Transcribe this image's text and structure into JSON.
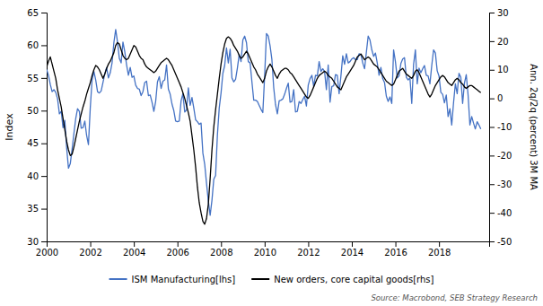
{
  "chart_data": {
    "type": "line",
    "ylabel": "Index",
    "y2label": "Ann. 2q/2q (percent) 3M MA",
    "annotations": [
      "Source: Macrobond, SEB Strategy Research"
    ],
    "xlim": [
      2000,
      2020.3
    ],
    "xticks": [
      2000,
      2002,
      2004,
      2006,
      2008,
      2010,
      2012,
      2014,
      2016,
      2018
    ],
    "ylim": [
      30,
      65
    ],
    "yticks": [
      30,
      35,
      40,
      45,
      50,
      55,
      60,
      65
    ],
    "y2lim": [
      -50,
      30
    ],
    "y2ticks": [
      -50,
      -40,
      -30,
      -20,
      -10,
      0,
      10,
      20,
      30
    ],
    "grid": false,
    "legend": "bottom",
    "x": [
      2000,
      2000.0833333333333,
      2000.1666666666667,
      2000.25,
      2000.3333333333333,
      2000.4166666666667,
      2000.5,
      2000.5833333333333,
      2000.6666666666667,
      2000.75,
      2000.8333333333333,
      2000.9166666666667,
      2001,
      2001.0833333333333,
      2001.1666666666667,
      2001.25,
      2001.3333333333333,
      2001.4166666666667,
      2001.5,
      2001.5833333333333,
      2001.6666666666667,
      2001.75,
      2001.8333333333333,
      2001.9166666666667,
      2002,
      2002.0833333333333,
      2002.1666666666667,
      2002.25,
      2002.3333333333333,
      2002.4166666666667,
      2002.5,
      2002.5833333333333,
      2002.6666666666667,
      2002.75,
      2002.8333333333333,
      2002.9166666666667,
      2003,
      2003.0833333333333,
      2003.1666666666667,
      2003.25,
      2003.3333333333333,
      2003.4166666666667,
      2003.5,
      2003.5833333333333,
      2003.6666666666667,
      2003.75,
      2003.8333333333333,
      2003.9166666666667,
      2004,
      2004.0833333333333,
      2004.1666666666667,
      2004.25,
      2004.3333333333333,
      2004.4166666666667,
      2004.5,
      2004.5833333333333,
      2004.6666666666667,
      2004.75,
      2004.8333333333333,
      2004.9166666666667,
      2005,
      2005.0833333333333,
      2005.1666666666667,
      2005.25,
      2005.3333333333333,
      2005.4166666666667,
      2005.5,
      2005.5833333333333,
      2005.6666666666667,
      2005.75,
      2005.8333333333333,
      2005.9166666666667,
      2006,
      2006.0833333333333,
      2006.1666666666667,
      2006.25,
      2006.3333333333333,
      2006.4166666666667,
      2006.5,
      2006.5833333333333,
      2006.6666666666667,
      2006.75,
      2006.8333333333333,
      2006.9166666666667,
      2007,
      2007.0833333333333,
      2007.1666666666667,
      2007.25,
      2007.3333333333333,
      2007.4166666666667,
      2007.5,
      2007.5833333333333,
      2007.6666666666667,
      2007.75,
      2007.8333333333333,
      2007.9166666666667,
      2008,
      2008.0833333333333,
      2008.1666666666667,
      2008.25,
      2008.3333333333333,
      2008.4166666666667,
      2008.5,
      2008.5833333333333,
      2008.6666666666667,
      2008.75,
      2008.8333333333333,
      2008.9166666666667,
      2009,
      2009.0833333333333,
      2009.1666666666667,
      2009.25,
      2009.3333333333333,
      2009.4166666666667,
      2009.5,
      2009.5833333333333,
      2009.6666666666667,
      2009.75,
      2009.8333333333333,
      2009.9166666666667,
      2010,
      2010.0833333333333,
      2010.1666666666667,
      2010.25,
      2010.3333333333333,
      2010.4166666666667,
      2010.5,
      2010.5833333333333,
      2010.6666666666667,
      2010.75,
      2010.8333333333333,
      2010.9166666666667,
      2011,
      2011.0833333333333,
      2011.1666666666667,
      2011.25,
      2011.3333333333333,
      2011.4166666666667,
      2011.5,
      2011.5833333333333,
      2011.6666666666667,
      2011.75,
      2011.8333333333333,
      2011.9166666666667,
      2012,
      2012.0833333333333,
      2012.1666666666667,
      2012.25,
      2012.3333333333333,
      2012.4166666666667,
      2012.5,
      2012.5833333333333,
      2012.6666666666667,
      2012.75,
      2012.8333333333333,
      2012.9166666666667,
      2013,
      2013.0833333333333,
      2013.1666666666667,
      2013.25,
      2013.3333333333333,
      2013.4166666666667,
      2013.5,
      2013.5833333333333,
      2013.6666666666667,
      2013.75,
      2013.8333333333333,
      2013.9166666666667,
      2014,
      2014.0833333333333,
      2014.1666666666667,
      2014.25,
      2014.3333333333333,
      2014.4166666666667,
      2014.5,
      2014.5833333333333,
      2014.6666666666667,
      2014.75,
      2014.8333333333333,
      2014.9166666666667,
      2015,
      2015.0833333333333,
      2015.1666666666667,
      2015.25,
      2015.3333333333333,
      2015.4166666666667,
      2015.5,
      2015.5833333333333,
      2015.6666666666667,
      2015.75,
      2015.8333333333333,
      2015.9166666666667,
      2016,
      2016.0833333333333,
      2016.1666666666667,
      2016.25,
      2016.3333333333333,
      2016.4166666666667,
      2016.5,
      2016.5833333333333,
      2016.6666666666667,
      2016.75,
      2016.8333333333333,
      2016.9166666666667,
      2017,
      2017.0833333333333,
      2017.1666666666667,
      2017.25,
      2017.3333333333333,
      2017.4166666666667,
      2017.5,
      2017.5833333333333,
      2017.6666666666667,
      2017.75,
      2017.8333333333333,
      2017.9166666666667,
      2018,
      2018.0833333333333,
      2018.1666666666667,
      2018.25,
      2018.3333333333333,
      2018.4166666666667,
      2018.5,
      2018.5833333333333,
      2018.6666666666667,
      2018.75,
      2018.8333333333333,
      2018.9166666666667,
      2019,
      2019.0833333333333,
      2019.1666666666667,
      2019.25,
      2019.3333333333333,
      2019.4166666666667,
      2019.5,
      2019.5833333333333,
      2019.6666666666667,
      2019.75,
      2019.8333333333333,
      2019.9166666666667
    ],
    "series": [
      {
        "name": "ISM Manufacturing[lhs]",
        "color": "#4472C4",
        "axis": "y",
        "values": [
          56.3,
          55.4,
          54.0,
          52.9,
          53.2,
          52.8,
          51.8,
          49.5,
          49.9,
          47.4,
          48.5,
          44.3,
          41.2,
          41.9,
          44.1,
          46.5,
          48.8,
          50.3,
          49.9,
          47.3,
          47.4,
          48.4,
          46.2,
          44.8,
          50.4,
          54.7,
          56.0,
          54.7,
          52.9,
          52.7,
          53.0,
          54.3,
          55.6,
          56.6,
          55.0,
          55.8,
          57.3,
          60.4,
          62.4,
          60.5,
          58.0,
          57.3,
          60.5,
          59.0,
          57.0,
          55.4,
          56.6,
          55.1,
          55.3,
          53.9,
          53.4,
          53.3,
          52.3,
          52.9,
          54.3,
          54.5,
          52.3,
          52.4,
          51.3,
          49.9,
          51.4,
          54.4,
          55.2,
          53.4,
          54.5,
          54.7,
          57.0,
          53.3,
          52.5,
          51.0,
          50.0,
          48.4,
          48.3,
          48.4,
          51.5,
          52.6,
          49.8,
          50.1,
          53.5,
          50.8,
          52.0,
          50.4,
          48.6,
          48.3,
          47.9,
          48.1,
          43.5,
          41.8,
          38.9,
          36.2,
          34.0,
          36.3,
          39.5,
          40.1,
          46.3,
          50.4,
          52.7,
          55.7,
          56.9,
          59.6,
          57.3,
          59.4,
          55.0,
          54.4,
          54.8,
          56.5,
          58.6,
          57.5,
          60.8,
          61.4,
          60.4,
          57.5,
          57.3,
          54.4,
          51.6,
          51.6,
          51.4,
          50.8,
          50.2,
          49.7,
          55.3,
          61.8,
          61.4,
          59.9,
          57.8,
          53.5,
          50.9,
          49.5,
          51.5,
          51.6,
          51.8,
          52.5,
          53.4,
          54.2,
          51.3,
          51.4,
          53.2,
          49.8,
          49.9,
          51.4,
          51.1,
          51.7,
          52.2,
          50.7,
          53.9,
          54.9,
          55.4,
          53.7,
          55.4,
          55.3,
          57.5,
          56.0,
          56.4,
          56.0,
          53.2,
          57.0,
          51.3,
          53.7,
          53.8,
          55.5,
          55.4,
          52.6,
          55.3,
          58.4,
          57.1,
          58.7,
          57.3,
          57.5,
          57.9,
          58.1,
          57.8,
          57.8,
          58.7,
          58.6,
          57.3,
          56.4,
          58.9,
          61.4,
          60.8,
          59.3,
          58.3,
          58.8,
          57.3,
          55.4,
          56.6,
          54.9,
          54.3,
          52.2,
          51.4,
          52.1,
          51.1,
          59.3,
          57.5,
          55.0,
          55.3,
          57.2,
          57.9,
          58.1,
          55.1,
          54.7,
          55.0,
          51.1,
          57.1,
          59.3,
          54.1,
          56.5,
          55.8,
          56.4,
          56.9,
          55.4,
          55.3,
          54.1,
          56.9,
          59.3,
          58.8,
          56.1,
          55.3,
          52.8,
          52.5,
          51.2,
          52.4,
          49.1,
          50.3,
          47.8,
          51.2,
          54.1,
          52.6,
          55.7,
          55.1,
          51.1,
          54.2,
          55.5,
          52.4,
          47.8,
          49.1,
          48.1,
          47.2,
          48.3,
          47.8,
          47.2
        ]
      },
      {
        "name": "New orders, core capital goods[rhs]",
        "color": "#000000",
        "axis": "y2",
        "values": [
          11.0,
          13.0,
          14.5,
          12.0,
          9.5,
          7.0,
          3.0,
          0.0,
          -3.0,
          -7.0,
          -11.0,
          -15.0,
          -18.0,
          -20.0,
          -19.5,
          -17.0,
          -14.0,
          -11.0,
          -8.0,
          -5.5,
          -3.0,
          -1.0,
          1.5,
          3.5,
          5.5,
          8.0,
          10.0,
          11.5,
          11.0,
          10.0,
          8.5,
          7.0,
          8.5,
          10.5,
          12.0,
          13.0,
          14.5,
          16.0,
          18.5,
          19.5,
          19.0,
          17.0,
          15.0,
          14.0,
          13.5,
          14.0,
          15.5,
          17.0,
          18.5,
          18.0,
          16.5,
          15.0,
          14.0,
          13.5,
          12.0,
          11.0,
          10.5,
          10.0,
          9.5,
          9.0,
          9.5,
          10.5,
          11.5,
          12.5,
          13.0,
          13.5,
          14.0,
          13.5,
          12.5,
          11.5,
          10.0,
          8.5,
          7.0,
          5.5,
          4.0,
          2.0,
          0.0,
          -2.5,
          -5.0,
          -8.0,
          -13.0,
          -18.0,
          -24.0,
          -31.0,
          -36.5,
          -40.0,
          -43.0,
          -44.0,
          -42.0,
          -37.0,
          -28.0,
          -18.0,
          -10.0,
          -4.0,
          1.5,
          7.0,
          12.0,
          16.0,
          19.0,
          21.0,
          21.5,
          21.0,
          20.0,
          18.5,
          17.5,
          16.5,
          15.0,
          14.0,
          14.5,
          15.5,
          16.5,
          15.5,
          14.0,
          12.5,
          11.0,
          10.0,
          8.5,
          7.5,
          6.5,
          5.5,
          7.0,
          9.5,
          11.0,
          12.0,
          11.0,
          9.5,
          8.0,
          7.0,
          8.5,
          9.5,
          10.0,
          10.5,
          10.5,
          10.0,
          9.0,
          8.5,
          7.5,
          6.5,
          5.5,
          4.5,
          3.5,
          2.5,
          1.5,
          0.5,
          0.0,
          1.0,
          2.5,
          4.0,
          5.5,
          7.0,
          8.0,
          8.5,
          9.0,
          9.5,
          9.0,
          8.0,
          7.5,
          7.0,
          6.0,
          5.0,
          4.0,
          3.5,
          3.0,
          4.5,
          6.0,
          7.5,
          8.5,
          9.5,
          10.5,
          11.5,
          13.0,
          14.5,
          15.0,
          15.5,
          14.5,
          13.5,
          14.0,
          14.5,
          14.0,
          13.0,
          12.0,
          11.5,
          11.0,
          10.0,
          9.0,
          8.0,
          7.0,
          6.0,
          5.5,
          5.0,
          4.5,
          5.0,
          6.5,
          8.0,
          9.5,
          10.0,
          10.5,
          9.5,
          8.5,
          8.0,
          7.5,
          7.0,
          8.0,
          9.5,
          10.0,
          9.0,
          7.5,
          6.0,
          4.5,
          3.0,
          1.5,
          0.5,
          1.5,
          3.0,
          4.5,
          5.5,
          6.5,
          7.5,
          8.0,
          7.5,
          6.5,
          5.5,
          5.0,
          4.5,
          5.5,
          6.5,
          7.0,
          6.5,
          5.5,
          5.0,
          4.0,
          3.5,
          4.0,
          4.5,
          4.5,
          4.0,
          3.5,
          3.0,
          2.5,
          2.0
        ]
      }
    ]
  }
}
